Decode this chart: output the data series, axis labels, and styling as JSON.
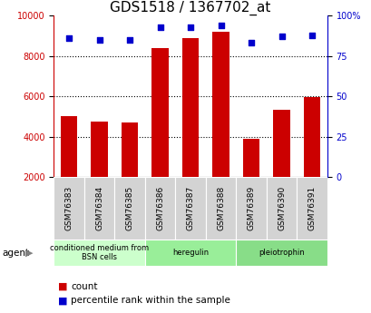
{
  "title": "GDS1518 / 1367702_at",
  "samples": [
    "GSM76383",
    "GSM76384",
    "GSM76385",
    "GSM76386",
    "GSM76387",
    "GSM76388",
    "GSM76389",
    "GSM76390",
    "GSM76391"
  ],
  "counts": [
    5000,
    4750,
    4700,
    8400,
    8900,
    9200,
    3900,
    5350,
    5950
  ],
  "percentiles": [
    86,
    85,
    85,
    93,
    93,
    94,
    83,
    87,
    88
  ],
  "ylim_left": [
    2000,
    10000
  ],
  "ylim_right": [
    0,
    100
  ],
  "yticks_left": [
    2000,
    4000,
    6000,
    8000,
    10000
  ],
  "yticks_right": [
    0,
    25,
    50,
    75,
    100
  ],
  "bar_color": "#cc0000",
  "dot_color": "#0000cc",
  "grid_color": "#000000",
  "agent_groups": [
    {
      "label": "conditioned medium from\nBSN cells",
      "start": 0,
      "end": 3,
      "color": "#ccffcc"
    },
    {
      "label": "heregulin",
      "start": 3,
      "end": 6,
      "color": "#99ee99"
    },
    {
      "label": "pleiotrophin",
      "start": 6,
      "end": 9,
      "color": "#88dd88"
    }
  ],
  "legend_count_label": "count",
  "legend_pct_label": "percentile rank within the sample",
  "agent_label": "agent",
  "title_fontsize": 11,
  "tick_label_fontsize": 6.5,
  "axis_tick_fontsize": 7,
  "bar_width": 0.55,
  "background_color": "#ffffff",
  "plot_bg": "#ffffff"
}
